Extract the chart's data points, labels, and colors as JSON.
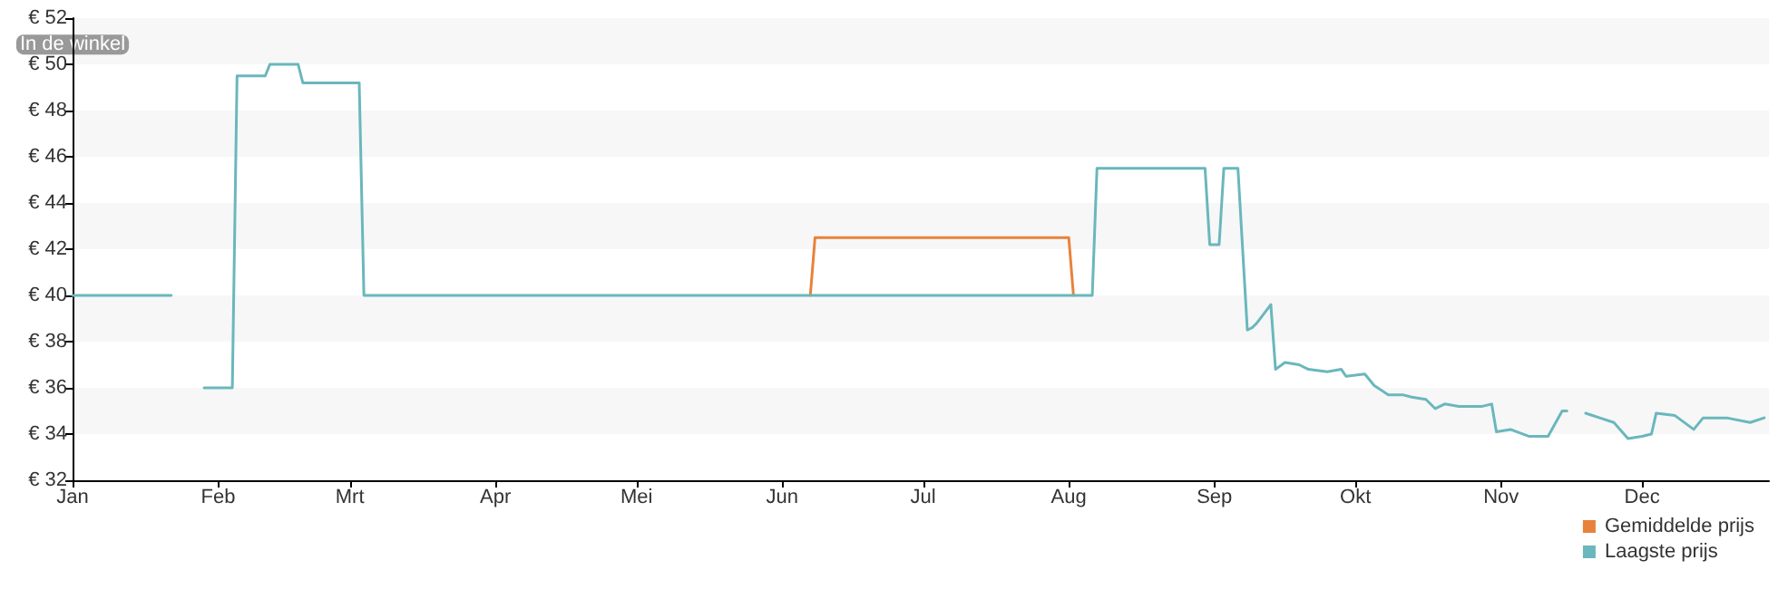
{
  "chart_data": {
    "type": "line",
    "ylabel": "In de winkel",
    "xlim": [
      "--01-01",
      "--12-28"
    ],
    "xticks": [
      {
        "value": "--01-01",
        "label": "Jan"
      },
      {
        "value": "--02-01",
        "label": "Feb"
      },
      {
        "value": "--03-01",
        "label": "Mrt"
      },
      {
        "value": "--04-01",
        "label": "Apr"
      },
      {
        "value": "--05-01",
        "label": "Mei"
      },
      {
        "value": "--06-01",
        "label": "Jun"
      },
      {
        "value": "--07-01",
        "label": "Jul"
      },
      {
        "value": "--08-01",
        "label": "Aug"
      },
      {
        "value": "--09-01",
        "label": "Sep"
      },
      {
        "value": "--10-01",
        "label": "Okt"
      },
      {
        "value": "--11-01",
        "label": "Nov"
      },
      {
        "value": "--12-01",
        "label": "Dec"
      }
    ],
    "ylim": [
      32,
      52
    ],
    "yticks": [
      {
        "value": 32,
        "label": "€ 32"
      },
      {
        "value": 34,
        "label": "€ 34"
      },
      {
        "value": 36,
        "label": "€ 36"
      },
      {
        "value": 38,
        "label": "€ 38"
      },
      {
        "value": 40,
        "label": "€ 40"
      },
      {
        "value": 42,
        "label": "€ 42"
      },
      {
        "value": 44,
        "label": "€ 44"
      },
      {
        "value": 46,
        "label": "€ 46"
      },
      {
        "value": 48,
        "label": "€ 48"
      },
      {
        "value": 50,
        "label": "€ 50"
      },
      {
        "value": 52,
        "label": "€ 52"
      }
    ],
    "legend": "bottom right",
    "marker": "none",
    "line_style": "solid",
    "series": [
      {
        "name": "Gemiddelde prijs",
        "color": "#e8823a",
        "x": [
          "--06-07",
          "--06-08",
          "--08-01",
          "--08-02"
        ],
        "values": [
          40,
          42.5,
          42.5,
          40
        ]
      },
      {
        "name": "Laagste prijs",
        "color": "#6ab7bd",
        "x": [
          "--01-01",
          "--01-22",
          "--01-25",
          "--01-29",
          "--02-04",
          "--02-05",
          "--02-11",
          "--02-12",
          "--02-18",
          "--02-19",
          "--03-03",
          "--03-04",
          "--08-06",
          "--08-07",
          "--08-30",
          "--08-31",
          "--09-02",
          "--09-03",
          "--09-06",
          "--09-08",
          "--09-09",
          "--09-10",
          "--09-13",
          "--09-14",
          "--09-16",
          "--09-19",
          "--09-21",
          "--09-25",
          "--09-28",
          "--09-29",
          "--10-03",
          "--10-05",
          "--10-08",
          "--10-11",
          "--10-13",
          "--10-16",
          "--10-18",
          "--10-20",
          "--10-23",
          "--10-28",
          "--10-30",
          "--10-31",
          "--11-03",
          "--11-07",
          "--11-11",
          "--11-14",
          "--11-15",
          "--11-17",
          "--11-19",
          "--11-22",
          "--11-25",
          "--11-28",
          "--12-01",
          "--12-03",
          "--12-04",
          "--12-08",
          "--12-12",
          "--12-14",
          "--12-19",
          "--12-24",
          "--12-27"
        ],
        "values": [
          40,
          40,
          null,
          36,
          36,
          49.5,
          49.5,
          50,
          50,
          49.2,
          49.2,
          40,
          40,
          45.5,
          45.5,
          42.2,
          42.2,
          45.5,
          45.5,
          38.5,
          38.6,
          38.8,
          39.6,
          36.8,
          37.1,
          37.0,
          36.8,
          36.7,
          36.8,
          36.5,
          36.6,
          36.1,
          35.7,
          35.7,
          35.6,
          35.5,
          35.1,
          35.3,
          35.2,
          35.2,
          35.3,
          34.1,
          34.2,
          33.9,
          33.9,
          35.0,
          35.0,
          null,
          34.9,
          34.7,
          34.5,
          33.8,
          33.9,
          34.0,
          34.9,
          34.8,
          34.2,
          34.7,
          34.7,
          34.5,
          34.7
        ]
      }
    ]
  }
}
